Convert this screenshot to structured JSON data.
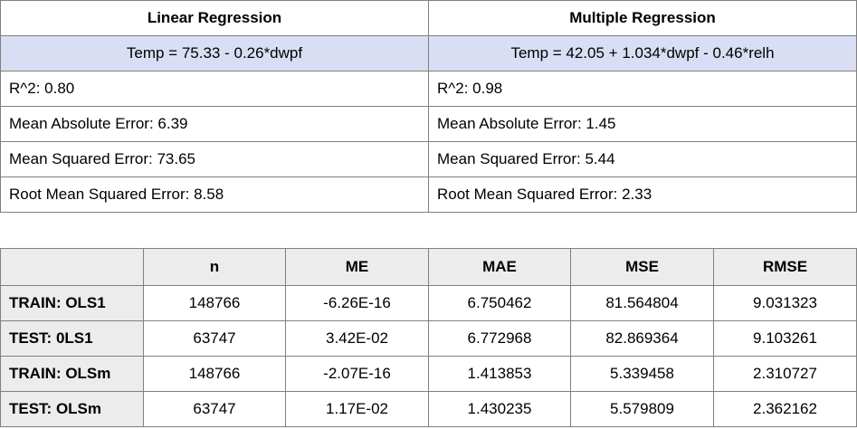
{
  "comparison": {
    "headers": [
      "Linear Regression",
      "Multiple Regression"
    ],
    "equations": [
      "Temp = 75.33 - 0.26*dwpf",
      "Temp = 42.05 + 1.034*dwpf - 0.46*relh"
    ],
    "metrics": [
      [
        "R^2: 0.80",
        "R^2: 0.98"
      ],
      [
        "Mean Absolute Error: 6.39",
        "Mean Absolute Error: 1.45"
      ],
      [
        "Mean Squared Error: 73.65",
        "Mean Squared Error: 5.44"
      ],
      [
        "Root Mean Squared Error: 8.58",
        "Root Mean Squared Error: 2.33"
      ]
    ]
  },
  "stats": {
    "headers": [
      "",
      "n",
      "ME",
      "MAE",
      "MSE",
      "RMSE"
    ],
    "rows": [
      [
        "TRAIN: OLS1",
        "148766",
        "-6.26E-16",
        "6.750462",
        "81.564804",
        "9.031323"
      ],
      [
        "TEST: 0LS1",
        "63747",
        "3.42E-02",
        "6.772968",
        "82.869364",
        "9.103261"
      ],
      [
        "TRAIN: OLSm",
        "148766",
        "-2.07E-16",
        "1.413853",
        "5.339458",
        "2.310727"
      ],
      [
        "TEST: OLSm",
        "63747",
        "1.17E-02",
        "1.430235",
        "5.579809",
        "2.362162"
      ]
    ]
  }
}
